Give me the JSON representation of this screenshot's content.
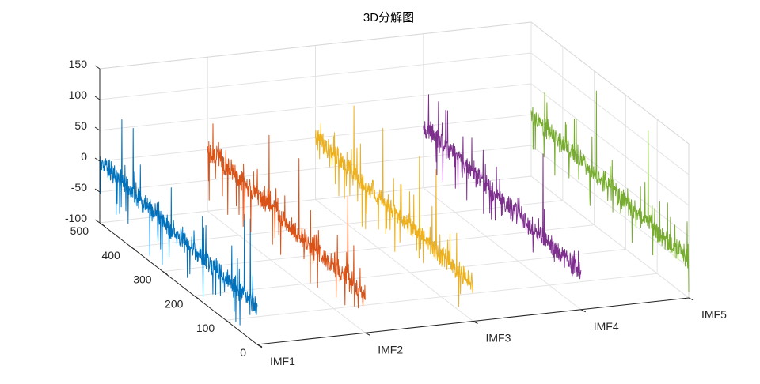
{
  "chart_data": {
    "type": "line",
    "subtype": "3d-waterfall",
    "title": "3D分解图",
    "categories": [
      "IMF1",
      "IMF2",
      "IMF3",
      "IMF4",
      "IMF5"
    ],
    "y_ticks": [
      0,
      100,
      200,
      300,
      400,
      500
    ],
    "ylim": [
      0,
      500
    ],
    "z_ticks": [
      -100,
      -50,
      0,
      50,
      100,
      150
    ],
    "zlim": [
      -100,
      150
    ],
    "grid": true,
    "series": [
      {
        "category": "IMF1",
        "color": "#0072BD",
        "summary": {
          "y_range": [
            0,
            500
          ],
          "z_baseline": [
            -40,
            0
          ],
          "z_min": -90,
          "z_max": 95
        }
      },
      {
        "category": "IMF2",
        "color": "#D95319",
        "summary": {
          "y_range": [
            0,
            500
          ],
          "z_baseline": [
            -40,
            0
          ],
          "z_min": -80,
          "z_max": 100
        }
      },
      {
        "category": "IMF3",
        "color": "#EDB120",
        "summary": {
          "y_range": [
            0,
            500
          ],
          "z_baseline": [
            -40,
            0
          ],
          "z_min": -85,
          "z_max": 100
        }
      },
      {
        "category": "IMF4",
        "color": "#7E2F8E",
        "summary": {
          "y_range": [
            0,
            500
          ],
          "z_baseline": [
            -40,
            0
          ],
          "z_min": -90,
          "z_max": 105
        }
      },
      {
        "category": "IMF5",
        "color": "#77AC30",
        "summary": {
          "y_range": [
            0,
            500
          ],
          "z_baseline": [
            -40,
            0
          ],
          "z_min": -90,
          "z_max": 120
        }
      }
    ]
  }
}
